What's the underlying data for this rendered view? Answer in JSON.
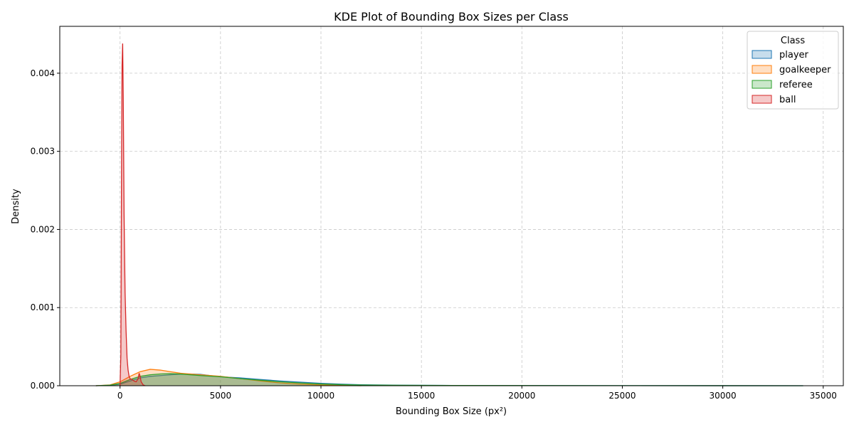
{
  "chart_data": {
    "type": "area",
    "title": "KDE Plot of Bounding Box Sizes per Class",
    "xlabel": "Bounding Box Size (px²)",
    "ylabel": "Density",
    "xlim": [
      -3000,
      36000
    ],
    "ylim": [
      0,
      0.0046
    ],
    "x_ticks": [
      0,
      5000,
      10000,
      15000,
      20000,
      25000,
      30000,
      35000
    ],
    "y_ticks": [
      0.0,
      0.001,
      0.002,
      0.003,
      0.004
    ],
    "x_tick_labels": [
      "0",
      "5000",
      "10000",
      "15000",
      "20000",
      "25000",
      "30000",
      "35000"
    ],
    "y_tick_labels": [
      "0.000",
      "0.001",
      "0.002",
      "0.003",
      "0.004"
    ],
    "grid": true,
    "legend": {
      "title": "Class",
      "placement": "top-right"
    },
    "series": [
      {
        "name": "player",
        "color": "#1f77b4",
        "points": [
          [
            -1200,
            0
          ],
          [
            -500,
            5e-06
          ],
          [
            0,
            2e-05
          ],
          [
            500,
            6e-05
          ],
          [
            1000,
            0.0001
          ],
          [
            1500,
            0.00012
          ],
          [
            2000,
            0.00013
          ],
          [
            2500,
            0.00014
          ],
          [
            3000,
            0.000148
          ],
          [
            3500,
            0.00015
          ],
          [
            4000,
            0.000145
          ],
          [
            4500,
            0.00013
          ],
          [
            5000,
            0.000115
          ],
          [
            6000,
            0.0001
          ],
          [
            7000,
            8e-05
          ],
          [
            8000,
            6e-05
          ],
          [
            9000,
            4.5e-05
          ],
          [
            10000,
            3e-05
          ],
          [
            11000,
            2e-05
          ],
          [
            12000,
            1.2e-05
          ],
          [
            14000,
            7e-06
          ],
          [
            16000,
            4e-06
          ],
          [
            20000,
            2e-06
          ],
          [
            25000,
            1e-06
          ],
          [
            30000,
            5e-07
          ],
          [
            34000,
            0
          ]
        ]
      },
      {
        "name": "goalkeeper",
        "color": "#ff7f0e",
        "points": [
          [
            -1200,
            0
          ],
          [
            -500,
            1e-05
          ],
          [
            0,
            5e-05
          ],
          [
            500,
            0.00012
          ],
          [
            1000,
            0.00018
          ],
          [
            1500,
            0.00021
          ],
          [
            2000,
            0.0002
          ],
          [
            2500,
            0.00018
          ],
          [
            3000,
            0.00016
          ],
          [
            4000,
            0.00014
          ],
          [
            5000,
            0.00012
          ],
          [
            6000,
            9e-05
          ],
          [
            7000,
            6e-05
          ],
          [
            8000,
            3.5e-05
          ],
          [
            9000,
            2e-05
          ],
          [
            10000,
            1e-05
          ],
          [
            11000,
            5e-06
          ],
          [
            12000,
            0
          ]
        ]
      },
      {
        "name": "referee",
        "color": "#2ca02c",
        "points": [
          [
            -1200,
            0
          ],
          [
            -500,
            8e-06
          ],
          [
            0,
            3e-05
          ],
          [
            500,
            8e-05
          ],
          [
            1000,
            0.00012
          ],
          [
            1500,
            0.00014
          ],
          [
            2000,
            0.00015
          ],
          [
            2500,
            0.000155
          ],
          [
            3000,
            0.00015
          ],
          [
            4000,
            0.00013
          ],
          [
            5000,
            0.000115
          ],
          [
            6000,
            9e-05
          ],
          [
            7000,
            7e-05
          ],
          [
            8000,
            5e-05
          ],
          [
            9000,
            3.5e-05
          ],
          [
            10000,
            2.2e-05
          ],
          [
            11000,
            1.4e-05
          ],
          [
            12000,
            9e-06
          ],
          [
            14000,
            5e-06
          ],
          [
            17000,
            3e-06
          ],
          [
            21000,
            2e-06
          ],
          [
            25000,
            1e-06
          ],
          [
            30000,
            5e-07
          ],
          [
            34000,
            0
          ]
        ]
      },
      {
        "name": "ball",
        "color": "#d62728",
        "points": [
          [
            0,
            0
          ],
          [
            40,
            0.0004
          ],
          [
            70,
            0.0025
          ],
          [
            100,
            0.0041
          ],
          [
            130,
            0.00438
          ],
          [
            160,
            0.0037
          ],
          [
            200,
            0.0022
          ],
          [
            250,
            0.0012
          ],
          [
            300,
            0.0007
          ],
          [
            350,
            0.00035
          ],
          [
            400,
            0.0002
          ],
          [
            450,
            0.00012
          ],
          [
            500,
            9e-05
          ],
          [
            600,
            8e-05
          ],
          [
            700,
            6e-05
          ],
          [
            800,
            5e-05
          ],
          [
            900,
            9e-05
          ],
          [
            950,
            0.00016
          ],
          [
            1000,
            0.00012
          ],
          [
            1050,
            5e-05
          ],
          [
            1150,
            1e-05
          ],
          [
            1250,
            0
          ]
        ]
      }
    ]
  }
}
